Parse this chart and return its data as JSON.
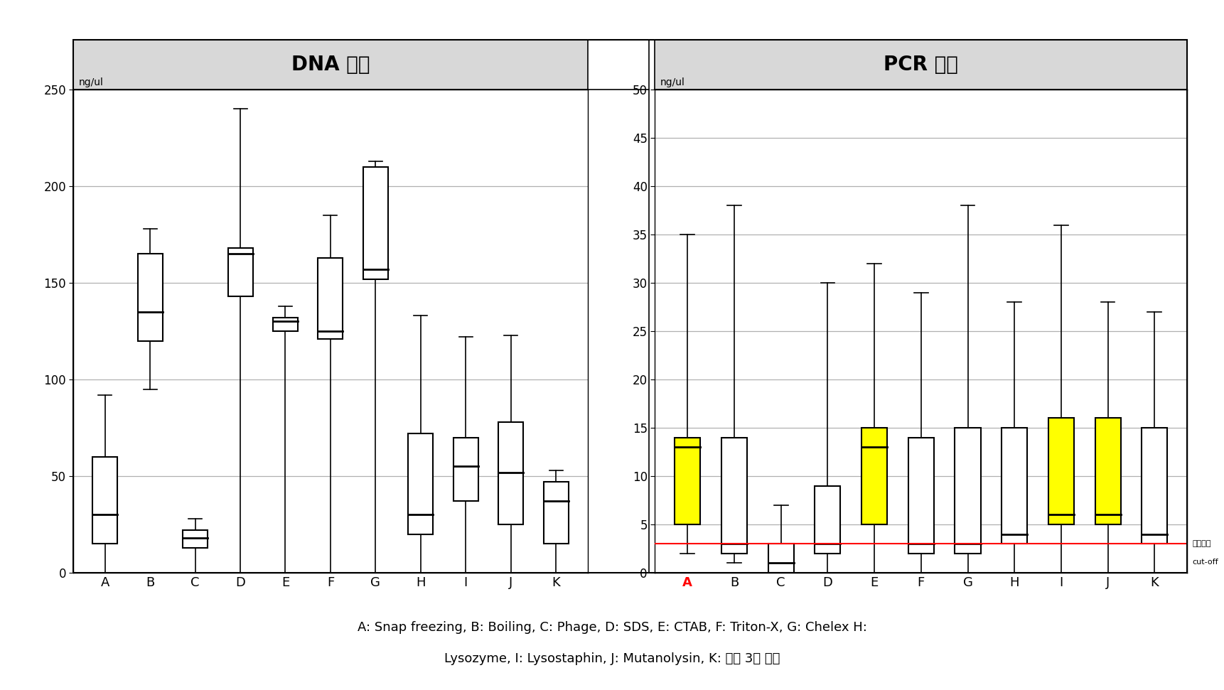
{
  "left_title": "DNA 농도",
  "right_title": "PCR 강도",
  "footer_line1": "A: Snap freezing, B: Boiling, C: Phage, D: SDS, E: CTAB, F: Triton-X, G: Chelex H:",
  "footer_line2": "Lysozyme, I: Lysostaphin, J: Mutanolysin, K: 효소 3종 혼합",
  "categories": [
    "A",
    "B",
    "C",
    "D",
    "E",
    "F",
    "G",
    "H",
    "I",
    "J",
    "K"
  ],
  "left_ylabel": "ng/ul",
  "right_ylabel": "ng/ul",
  "left_ylim": [
    0,
    250
  ],
  "left_yticks": [
    0,
    50,
    100,
    150,
    200,
    250
  ],
  "right_ylim": [
    0,
    50
  ],
  "right_yticks": [
    0,
    5,
    10,
    15,
    20,
    25,
    30,
    35,
    40,
    45,
    50
  ],
  "left_boxes": [
    {
      "label": "A",
      "q1": 15,
      "med": 30,
      "q3": 60,
      "whislo": 0,
      "whishi": 92,
      "color": "white"
    },
    {
      "label": "B",
      "q1": 120,
      "med": 135,
      "q3": 165,
      "whislo": 95,
      "whishi": 178,
      "color": "white"
    },
    {
      "label": "C",
      "q1": 13,
      "med": 18,
      "q3": 22,
      "whislo": 0,
      "whishi": 28,
      "color": "white"
    },
    {
      "label": "D",
      "q1": 143,
      "med": 165,
      "q3": 168,
      "whislo": 0,
      "whishi": 240,
      "color": "white"
    },
    {
      "label": "E",
      "q1": 125,
      "med": 130,
      "q3": 132,
      "whislo": 0,
      "whishi": 138,
      "color": "white"
    },
    {
      "label": "F",
      "q1": 121,
      "med": 125,
      "q3": 163,
      "whislo": 0,
      "whishi": 185,
      "color": "white"
    },
    {
      "label": "G",
      "q1": 152,
      "med": 157,
      "q3": 210,
      "whislo": 0,
      "whishi": 213,
      "color": "white"
    },
    {
      "label": "H",
      "q1": 20,
      "med": 30,
      "q3": 72,
      "whislo": 0,
      "whishi": 133,
      "color": "white"
    },
    {
      "label": "I",
      "q1": 37,
      "med": 55,
      "q3": 70,
      "whislo": 0,
      "whishi": 122,
      "color": "white"
    },
    {
      "label": "J",
      "q1": 25,
      "med": 52,
      "q3": 78,
      "whislo": 0,
      "whishi": 123,
      "color": "white"
    },
    {
      "label": "K",
      "q1": 15,
      "med": 37,
      "q3": 47,
      "whislo": 0,
      "whishi": 53,
      "color": "white"
    }
  ],
  "right_boxes": [
    {
      "label": "A",
      "q1": 5,
      "med": 13,
      "q3": 14,
      "whislo": 2,
      "whishi": 35,
      "color": "yellow",
      "red_label": true
    },
    {
      "label": "B",
      "q1": 2,
      "med": 3,
      "q3": 14,
      "whislo": 1,
      "whishi": 38,
      "color": "white"
    },
    {
      "label": "C",
      "q1": 0,
      "med": 1,
      "q3": 3,
      "whislo": 0,
      "whishi": 7,
      "color": "white"
    },
    {
      "label": "D",
      "q1": 2,
      "med": 3,
      "q3": 9,
      "whislo": 0,
      "whishi": 30,
      "color": "white"
    },
    {
      "label": "E",
      "q1": 5,
      "med": 13,
      "q3": 15,
      "whislo": 0,
      "whishi": 32,
      "color": "yellow"
    },
    {
      "label": "F",
      "q1": 2,
      "med": 3,
      "q3": 14,
      "whislo": 0,
      "whishi": 29,
      "color": "white"
    },
    {
      "label": "G",
      "q1": 2,
      "med": 3,
      "q3": 15,
      "whislo": 0,
      "whishi": 38,
      "color": "white"
    },
    {
      "label": "H",
      "q1": 3,
      "med": 4,
      "q3": 15,
      "whislo": 0,
      "whishi": 28,
      "color": "white"
    },
    {
      "label": "I",
      "q1": 5,
      "med": 6,
      "q3": 16,
      "whislo": 0,
      "whishi": 36,
      "color": "yellow"
    },
    {
      "label": "J",
      "q1": 5,
      "med": 6,
      "q3": 16,
      "whislo": 0,
      "whishi": 28,
      "color": "yellow"
    },
    {
      "label": "K",
      "q1": 3,
      "med": 4,
      "q3": 15,
      "whislo": 0,
      "whishi": 27,
      "color": "white"
    }
  ],
  "cutoff_value": 3,
  "cutoff_label1": "진단가능",
  "cutoff_label2": "cut-off",
  "bg_color": "#ffffff",
  "grid_color": "#b0b0b0",
  "box_edgecolor": "#000000",
  "title_bg": "#d8d8d8"
}
